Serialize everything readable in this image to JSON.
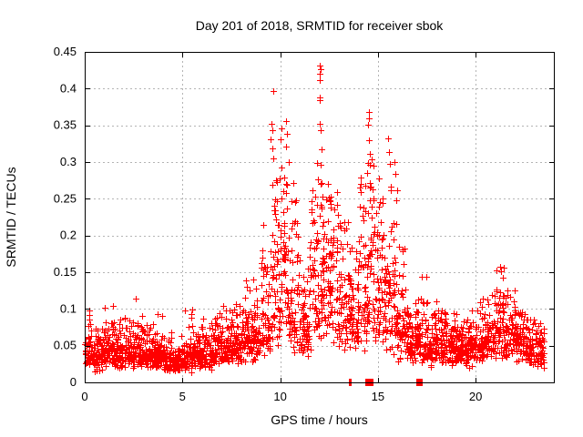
{
  "chart_data": {
    "type": "scatter",
    "title": "Day 201 of 2018, SRMTID for receiver sbok",
    "xlabel": "GPS time / hours",
    "ylabel": "SRMTID / TECUs",
    "xlim": [
      0,
      24
    ],
    "ylim": [
      0,
      0.45
    ],
    "xticks": {
      "values": [
        0,
        5,
        10,
        15,
        20
      ],
      "labels": [
        "0",
        "5",
        "10",
        "15",
        "20"
      ]
    },
    "yticks": {
      "values": [
        0,
        0.05,
        0.1,
        0.15,
        0.2,
        0.25,
        0.3,
        0.35,
        0.4,
        0.45
      ],
      "labels": [
        "0",
        "0.05",
        "0.1",
        "0.15",
        "0.2",
        "0.25",
        "0.3",
        "0.35",
        "0.4",
        "0.45"
      ]
    },
    "grid": true,
    "legend_position": "none",
    "marker": {
      "shape": "plus",
      "size": 7,
      "color": "#ff0000"
    },
    "grid_color": "#b4b4b4",
    "axis_color": "#000000",
    "background": "#ffffff",
    "density_envelope": {
      "bin_hours": 0.5,
      "points_per_bin": 58,
      "seed": 11,
      "bins": [
        [
          0.0,
          0.04,
          0.125
        ],
        [
          0.5,
          0.038,
          0.095
        ],
        [
          1.0,
          0.042,
          0.105
        ],
        [
          1.5,
          0.038,
          0.085
        ],
        [
          2.0,
          0.04,
          0.09
        ],
        [
          2.5,
          0.042,
          0.13
        ],
        [
          3.0,
          0.04,
          0.095
        ],
        [
          3.5,
          0.036,
          0.095
        ],
        [
          4.0,
          0.03,
          0.08
        ],
        [
          4.5,
          0.027,
          0.065
        ],
        [
          5.0,
          0.032,
          0.125
        ],
        [
          5.5,
          0.035,
          0.09
        ],
        [
          6.0,
          0.04,
          0.1
        ],
        [
          6.5,
          0.045,
          0.11
        ],
        [
          7.0,
          0.048,
          0.12
        ],
        [
          7.5,
          0.052,
          0.13
        ],
        [
          8.0,
          0.058,
          0.145
        ],
        [
          8.5,
          0.062,
          0.16
        ],
        [
          9.0,
          0.072,
          0.22
        ],
        [
          9.5,
          0.095,
          0.315
        ],
        [
          10.0,
          0.11,
          0.3
        ],
        [
          10.5,
          0.08,
          0.28
        ],
        [
          11.0,
          0.07,
          0.155
        ],
        [
          11.5,
          0.095,
          0.285
        ],
        [
          12.0,
          0.105,
          0.3
        ],
        [
          12.5,
          0.1,
          0.26
        ],
        [
          13.0,
          0.09,
          0.225
        ],
        [
          13.5,
          0.085,
          0.2
        ],
        [
          14.0,
          0.105,
          0.29
        ],
        [
          14.5,
          0.115,
          0.305
        ],
        [
          15.0,
          0.09,
          0.285
        ],
        [
          15.5,
          0.08,
          0.27
        ],
        [
          16.0,
          0.06,
          0.185
        ],
        [
          16.5,
          0.05,
          0.12
        ],
        [
          17.0,
          0.052,
          0.15
        ],
        [
          17.5,
          0.048,
          0.115
        ],
        [
          18.0,
          0.052,
          0.15
        ],
        [
          18.5,
          0.048,
          0.11
        ],
        [
          19.0,
          0.044,
          0.1
        ],
        [
          19.5,
          0.048,
          0.11
        ],
        [
          20.0,
          0.05,
          0.12
        ],
        [
          20.5,
          0.058,
          0.13
        ],
        [
          21.0,
          0.075,
          0.158
        ],
        [
          21.5,
          0.07,
          0.125
        ],
        [
          22.0,
          0.058,
          0.095
        ],
        [
          22.5,
          0.048,
          0.085
        ],
        [
          23.0,
          0.044,
          0.08
        ]
      ]
    },
    "outlier_points": [
      [
        9.65,
        0.397
      ],
      [
        9.55,
        0.352
      ],
      [
        9.6,
        0.343
      ],
      [
        9.5,
        0.331
      ],
      [
        9.58,
        0.318
      ],
      [
        10.05,
        0.346
      ],
      [
        10.0,
        0.331
      ],
      [
        10.3,
        0.356
      ],
      [
        10.33,
        0.338
      ],
      [
        10.28,
        0.321
      ],
      [
        10.45,
        0.3
      ],
      [
        11.9,
        0.299
      ],
      [
        11.95,
        0.276
      ],
      [
        12.02,
        0.432
      ],
      [
        12.05,
        0.427
      ],
      [
        12.0,
        0.42
      ],
      [
        12.04,
        0.412
      ],
      [
        12.03,
        0.388
      ],
      [
        12.01,
        0.384
      ],
      [
        12.0,
        0.352
      ],
      [
        12.06,
        0.344
      ],
      [
        12.1,
        0.317
      ],
      [
        12.05,
        0.296
      ],
      [
        12.08,
        0.27
      ],
      [
        14.52,
        0.368
      ],
      [
        14.56,
        0.359
      ],
      [
        14.48,
        0.351
      ],
      [
        14.55,
        0.33
      ],
      [
        14.6,
        0.311
      ],
      [
        14.5,
        0.299
      ],
      [
        14.45,
        0.285
      ],
      [
        15.5,
        0.332
      ],
      [
        15.55,
        0.314
      ],
      [
        15.6,
        0.298
      ],
      [
        15.85,
        0.3
      ],
      [
        15.9,
        0.284
      ],
      [
        16.0,
        0.262
      ]
    ],
    "zero_markers": [
      {
        "hour": 13.55,
        "width": 3
      },
      {
        "hour": 14.47,
        "width": 7
      },
      {
        "hour": 14.58,
        "width": 7
      },
      {
        "hour": 17.08,
        "width": 7
      }
    ]
  }
}
